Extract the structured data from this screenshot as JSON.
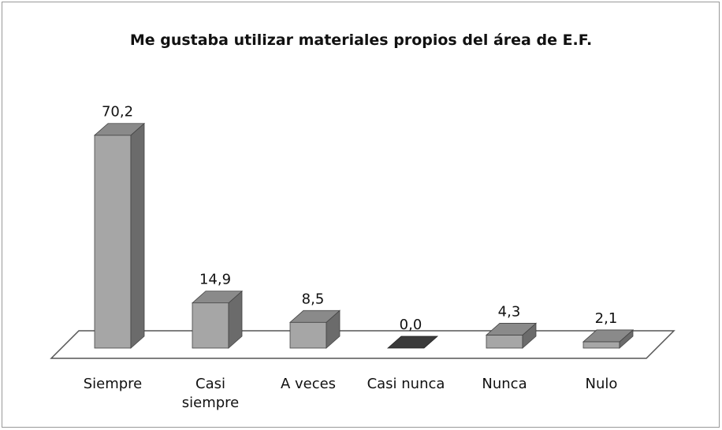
{
  "chart_data": {
    "type": "bar3d",
    "title": "Me gustaba utilizar materiales propios del área de E.F.",
    "categories": [
      "Siempre",
      "Casi\nsiempre",
      "A veces",
      "Casi nunca",
      "Nunca",
      "Nulo"
    ],
    "values": [
      70.2,
      14.9,
      8.5,
      0.0,
      4.3,
      2.1
    ],
    "value_labels": [
      "70,2",
      "14,9",
      "8,5",
      "0,0",
      "4,3",
      "2,1"
    ],
    "color": "#a6a6a6"
  }
}
